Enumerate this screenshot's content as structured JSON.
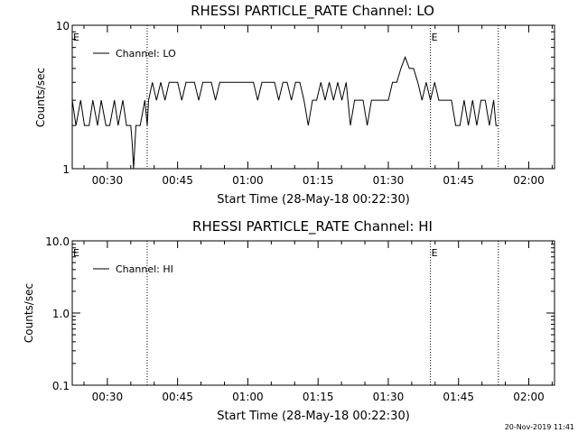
{
  "footer_timestamp": "20-Nov-2019 11:41",
  "chart_data": [
    {
      "type": "line",
      "title": "RHESSI PARTICLE_RATE Channel: LO",
      "xlabel": "Start Time (28-May-18 00:22:30)",
      "ylabel": "Counts/sec",
      "yscale": "log",
      "ylim": [
        1,
        10
      ],
      "xlim_minutes": [
        22.5,
        125.5
      ],
      "x_tick_values": [
        30,
        45,
        60,
        75,
        90,
        105,
        120
      ],
      "x_tick_labels": [
        "00:30",
        "00:45",
        "01:00",
        "01:15",
        "01:30",
        "01:45",
        "02:00"
      ],
      "y_tick_values": [
        1,
        10
      ],
      "y_tick_labels": [
        "1",
        "10"
      ],
      "legend": {
        "label": "Channel: LO",
        "position": "top-left"
      },
      "event_lines_minutes": [
        38.5,
        99.0,
        113.5
      ],
      "event_markers": [
        {
          "label": "E",
          "x_minutes": 22.5
        },
        {
          "label": "E",
          "x_minutes": 99.0
        }
      ],
      "series": [
        {
          "x_minutes": [
            22.5,
            23.3,
            24.3,
            25.1,
            26.1,
            26.9,
            27.9,
            28.7,
            29.7,
            30.5,
            31.5,
            32.3,
            33.3,
            34.1,
            35.0,
            35.3,
            35.6,
            36.1,
            37.0,
            38.0,
            38.5,
            38.8,
            39.6,
            40.5,
            41.4,
            42.3,
            43.2,
            44.1,
            45.0,
            45.9,
            46.8,
            47.7,
            48.6,
            49.5,
            50.4,
            51.3,
            52.2,
            53.1,
            54.0,
            54.9,
            55.8,
            56.7,
            57.6,
            58.5,
            59.4,
            60.3,
            61.2,
            62.1,
            63.0,
            63.9,
            64.8,
            65.7,
            66.6,
            67.5,
            68.4,
            69.3,
            70.2,
            71.1,
            72.0,
            72.9,
            73.8,
            74.7,
            75.6,
            76.5,
            77.4,
            78.3,
            79.2,
            80.1,
            81.0,
            81.9,
            82.8,
            83.7,
            84.6,
            85.5,
            86.4,
            87.3,
            88.2,
            89.1,
            90.0,
            90.9,
            91.8,
            92.7,
            93.6,
            94.5,
            95.4,
            96.3,
            97.2,
            98.1,
            99.0,
            99.9,
            100.8,
            101.7,
            102.6,
            103.5,
            104.4,
            105.3,
            106.2,
            107.1,
            108.0,
            108.9,
            109.8,
            110.7,
            111.6,
            112.5,
            113.0,
            113.5
          ],
          "values": [
            3,
            2,
            3,
            2,
            2,
            3,
            2,
            3,
            2,
            2,
            3,
            2,
            3,
            2,
            2,
            1.5,
            1,
            2,
            2,
            3,
            2,
            3,
            4,
            3,
            4,
            3,
            4,
            4,
            4,
            3,
            4,
            4,
            4,
            3,
            4,
            4,
            4,
            3,
            4,
            4,
            4,
            4,
            4,
            4,
            4,
            4,
            4,
            3,
            4,
            4,
            4,
            4,
            3,
            4,
            4,
            3,
            4,
            4,
            3,
            2,
            3,
            3,
            4,
            3,
            4,
            3,
            4,
            3,
            4,
            2,
            3,
            3,
            3,
            2,
            3,
            3,
            3,
            3,
            3,
            4,
            4,
            5,
            6,
            5,
            5,
            4,
            3,
            4,
            3,
            4,
            3,
            3,
            3,
            3,
            2,
            2,
            3,
            2,
            3,
            2,
            3,
            3,
            2,
            3,
            2,
            2
          ],
          "name": "Channel: LO"
        }
      ]
    },
    {
      "type": "line",
      "title": "RHESSI PARTICLE_RATE Channel: HI",
      "xlabel": "Start Time (28-May-18 00:22:30)",
      "ylabel": "Counts/sec",
      "yscale": "log",
      "ylim": [
        0.1,
        10
      ],
      "xlim_minutes": [
        22.5,
        125.5
      ],
      "x_tick_values": [
        30,
        45,
        60,
        75,
        90,
        105,
        120
      ],
      "x_tick_labels": [
        "00:30",
        "00:45",
        "01:00",
        "01:15",
        "01:30",
        "01:45",
        "02:00"
      ],
      "y_tick_values": [
        0.1,
        1,
        10
      ],
      "y_tick_labels": [
        "0.1",
        "1.0",
        "10.0"
      ],
      "legend": {
        "label": "Channel: HI",
        "position": "top-left"
      },
      "event_lines_minutes": [
        38.5,
        99.0,
        113.5
      ],
      "event_markers": [
        {
          "label": "E",
          "x_minutes": 22.5
        },
        {
          "label": "E",
          "x_minutes": 99.0
        }
      ],
      "series": [
        {
          "x_minutes": [],
          "values": [],
          "name": "Channel: HI"
        }
      ]
    }
  ]
}
